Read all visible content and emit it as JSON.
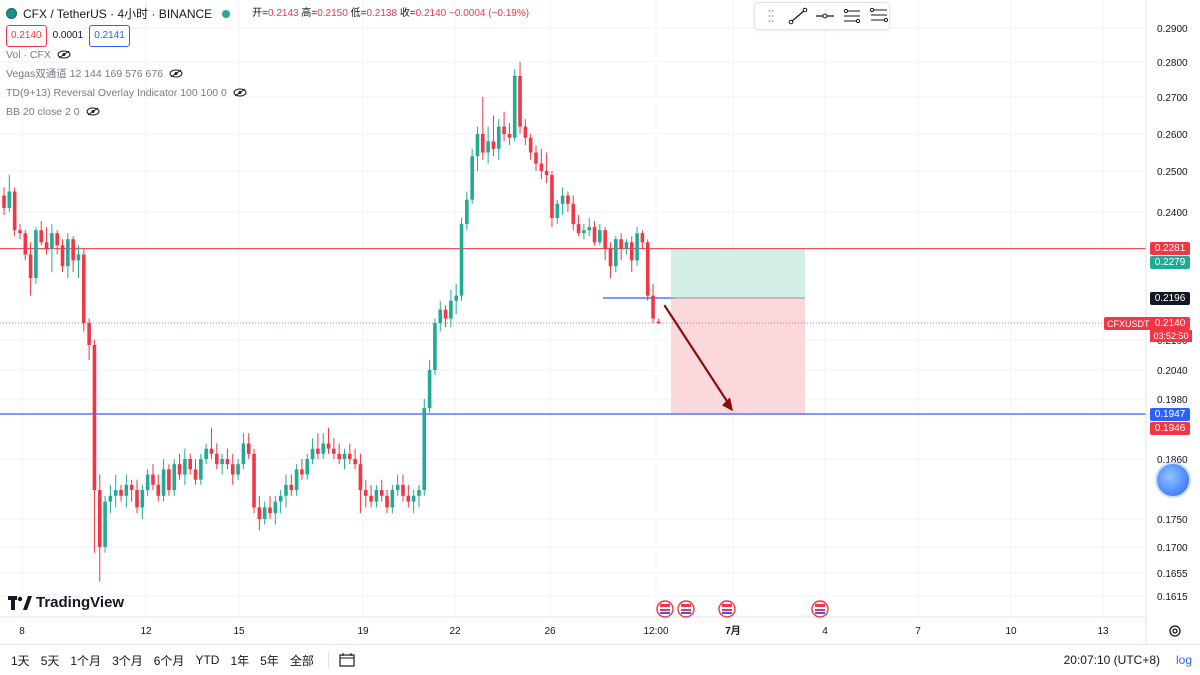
{
  "header": {
    "title": "CFX / TetherUS · 4小时 · BINANCE",
    "ohlc": [
      {
        "label": "开=",
        "value": "0.2143"
      },
      {
        "label": "高=",
        "value": "0.2150"
      },
      {
        "label": "低=",
        "value": "0.2138"
      },
      {
        "label": "收=",
        "value": "0.2140"
      }
    ],
    "change": "−0.0004 (−0.19%)",
    "sell_price": "0.2140",
    "spread": "0.0001",
    "buy_price": "0.2141"
  },
  "indicators": [
    "Vol · CFX",
    "Vegas双通道 12 144 169 576 676",
    "TD(9+13) Reversal Overlay Indicator 100 100 0",
    "BB 20 close 2 0"
  ],
  "logo": "TradingView",
  "bottom": {
    "ranges": [
      "1天",
      "5天",
      "1个月",
      "3个月",
      "6个月",
      "YTD",
      "1年",
      "5年",
      "全部"
    ],
    "clock": "20:07:10 (UTC+8)",
    "log": "log"
  },
  "price_tags": {
    "resistance_top": "0.2281",
    "resistance_bottom": "0.2279",
    "entry": "0.2196",
    "symbol": "CFXUSDT",
    "last": "0.2140",
    "countdown": "03:52:50",
    "support_top": "0.1947",
    "support_bottom": "0.1946"
  },
  "colors": {
    "up": "#22ab94",
    "down": "#f23645",
    "resistance": "#f23645",
    "support": "#2962ff",
    "target_zone": "#cfece6",
    "stop_zone": "#fbd6da",
    "arrow": "#8b0d0d"
  },
  "chart_data": {
    "type": "candlestick",
    "title": "CFX / TetherUS · 4小时 · BINANCE",
    "xlabel": "",
    "ylabel": "",
    "ylim": [
      0.159,
      0.292
    ],
    "y_ticks": [
      "0.2900",
      "0.2800",
      "0.2700",
      "0.2600",
      "0.2500",
      "0.2400",
      "0.2100",
      "0.2040",
      "0.1980",
      "0.1860",
      "0.1750",
      "0.1700",
      "0.1655",
      "0.1615"
    ],
    "x_ticks": [
      "8",
      "12",
      "15",
      "19",
      "22",
      "26",
      "12:00",
      "7月",
      "4",
      "7",
      "10",
      "13"
    ],
    "horizontal_lines": [
      {
        "name": "resistance",
        "value": 0.228
      },
      {
        "name": "support",
        "value": 0.1947
      }
    ],
    "entry_level": 0.2196,
    "position": {
      "direction": "short",
      "entry": 0.2196,
      "stop": 0.228,
      "target": 0.1947
    },
    "candles_ohlc": [
      [
        0.244,
        0.246,
        0.239,
        0.241
      ],
      [
        0.241,
        0.249,
        0.24,
        0.245
      ],
      [
        0.245,
        0.246,
        0.232,
        0.234
      ],
      [
        0.234,
        0.236,
        0.231,
        0.233
      ],
      [
        0.233,
        0.234,
        0.226,
        0.227
      ],
      [
        0.227,
        0.23,
        0.22,
        0.223
      ],
      [
        0.223,
        0.235,
        0.222,
        0.234
      ],
      [
        0.234,
        0.237,
        0.229,
        0.23
      ],
      [
        0.23,
        0.235,
        0.227,
        0.228
      ],
      [
        0.228,
        0.236,
        0.224,
        0.233
      ],
      [
        0.233,
        0.234,
        0.227,
        0.229
      ],
      [
        0.229,
        0.231,
        0.224,
        0.225
      ],
      [
        0.225,
        0.233,
        0.223,
        0.231
      ],
      [
        0.231,
        0.232,
        0.224,
        0.226
      ],
      [
        0.226,
        0.229,
        0.223,
        0.227
      ],
      [
        0.227,
        0.228,
        0.212,
        0.214
      ],
      [
        0.214,
        0.215,
        0.206,
        0.209
      ],
      [
        0.209,
        0.21,
        0.169,
        0.18
      ],
      [
        0.18,
        0.183,
        0.164,
        0.17
      ],
      [
        0.17,
        0.179,
        0.169,
        0.178
      ],
      [
        0.178,
        0.181,
        0.176,
        0.179
      ],
      [
        0.179,
        0.183,
        0.177,
        0.18
      ],
      [
        0.18,
        0.181,
        0.178,
        0.179
      ],
      [
        0.179,
        0.183,
        0.177,
        0.181
      ],
      [
        0.181,
        0.182,
        0.178,
        0.18
      ],
      [
        0.18,
        0.182,
        0.176,
        0.177
      ],
      [
        0.177,
        0.181,
        0.175,
        0.18
      ],
      [
        0.18,
        0.184,
        0.179,
        0.183
      ],
      [
        0.183,
        0.185,
        0.18,
        0.181
      ],
      [
        0.181,
        0.183,
        0.178,
        0.179
      ],
      [
        0.179,
        0.186,
        0.178,
        0.184
      ],
      [
        0.184,
        0.185,
        0.179,
        0.18
      ],
      [
        0.18,
        0.186,
        0.179,
        0.185
      ],
      [
        0.185,
        0.187,
        0.182,
        0.183
      ],
      [
        0.183,
        0.188,
        0.181,
        0.186
      ],
      [
        0.186,
        0.187,
        0.183,
        0.184
      ],
      [
        0.184,
        0.186,
        0.181,
        0.182
      ],
      [
        0.182,
        0.187,
        0.181,
        0.186
      ],
      [
        0.186,
        0.189,
        0.185,
        0.188
      ],
      [
        0.188,
        0.192,
        0.186,
        0.187
      ],
      [
        0.187,
        0.189,
        0.184,
        0.185
      ],
      [
        0.185,
        0.187,
        0.183,
        0.186
      ],
      [
        0.186,
        0.188,
        0.184,
        0.185
      ],
      [
        0.185,
        0.187,
        0.181,
        0.183
      ],
      [
        0.183,
        0.186,
        0.182,
        0.185
      ],
      [
        0.185,
        0.191,
        0.184,
        0.189
      ],
      [
        0.189,
        0.191,
        0.186,
        0.187
      ],
      [
        0.187,
        0.188,
        0.176,
        0.177
      ],
      [
        0.177,
        0.179,
        0.173,
        0.175
      ],
      [
        0.175,
        0.178,
        0.174,
        0.177
      ],
      [
        0.177,
        0.179,
        0.175,
        0.176
      ],
      [
        0.176,
        0.179,
        0.174,
        0.178
      ],
      [
        0.178,
        0.18,
        0.176,
        0.179
      ],
      [
        0.179,
        0.183,
        0.177,
        0.181
      ],
      [
        0.181,
        0.183,
        0.179,
        0.18
      ],
      [
        0.18,
        0.185,
        0.179,
        0.184
      ],
      [
        0.184,
        0.186,
        0.182,
        0.183
      ],
      [
        0.183,
        0.187,
        0.182,
        0.186
      ],
      [
        0.186,
        0.19,
        0.185,
        0.188
      ],
      [
        0.188,
        0.191,
        0.186,
        0.187
      ],
      [
        0.187,
        0.191,
        0.186,
        0.189
      ],
      [
        0.189,
        0.192,
        0.187,
        0.188
      ],
      [
        0.188,
        0.19,
        0.186,
        0.187
      ],
      [
        0.187,
        0.189,
        0.185,
        0.186
      ],
      [
        0.186,
        0.188,
        0.184,
        0.187
      ],
      [
        0.187,
        0.189,
        0.185,
        0.186
      ],
      [
        0.186,
        0.188,
        0.184,
        0.185
      ],
      [
        0.185,
        0.187,
        0.176,
        0.18
      ],
      [
        0.18,
        0.182,
        0.177,
        0.179
      ],
      [
        0.179,
        0.181,
        0.177,
        0.178
      ],
      [
        0.178,
        0.181,
        0.177,
        0.18
      ],
      [
        0.18,
        0.182,
        0.178,
        0.179
      ],
      [
        0.179,
        0.18,
        0.176,
        0.177
      ],
      [
        0.177,
        0.181,
        0.176,
        0.18
      ],
      [
        0.18,
        0.183,
        0.179,
        0.181
      ],
      [
        0.181,
        0.183,
        0.178,
        0.179
      ],
      [
        0.179,
        0.181,
        0.177,
        0.178
      ],
      [
        0.178,
        0.18,
        0.176,
        0.179
      ],
      [
        0.179,
        0.181,
        0.177,
        0.18
      ],
      [
        0.18,
        0.198,
        0.179,
        0.196
      ],
      [
        0.196,
        0.206,
        0.195,
        0.204
      ],
      [
        0.204,
        0.215,
        0.203,
        0.214
      ],
      [
        0.214,
        0.219,
        0.212,
        0.217
      ],
      [
        0.217,
        0.218,
        0.213,
        0.215
      ],
      [
        0.215,
        0.221,
        0.213,
        0.219
      ],
      [
        0.219,
        0.222,
        0.216,
        0.22
      ],
      [
        0.22,
        0.238,
        0.219,
        0.236
      ],
      [
        0.236,
        0.245,
        0.234,
        0.243
      ],
      [
        0.243,
        0.256,
        0.242,
        0.254
      ],
      [
        0.254,
        0.262,
        0.25,
        0.26
      ],
      [
        0.26,
        0.27,
        0.253,
        0.255
      ],
      [
        0.255,
        0.262,
        0.252,
        0.258
      ],
      [
        0.258,
        0.265,
        0.254,
        0.256
      ],
      [
        0.256,
        0.264,
        0.253,
        0.262
      ],
      [
        0.262,
        0.266,
        0.258,
        0.26
      ],
      [
        0.26,
        0.263,
        0.257,
        0.259
      ],
      [
        0.259,
        0.278,
        0.258,
        0.276
      ],
      [
        0.276,
        0.28,
        0.26,
        0.262
      ],
      [
        0.262,
        0.264,
        0.257,
        0.259
      ],
      [
        0.259,
        0.26,
        0.253,
        0.255
      ],
      [
        0.255,
        0.257,
        0.25,
        0.252
      ],
      [
        0.252,
        0.256,
        0.248,
        0.25
      ],
      [
        0.25,
        0.255,
        0.247,
        0.249
      ],
      [
        0.249,
        0.25,
        0.235,
        0.238
      ],
      [
        0.238,
        0.243,
        0.236,
        0.242
      ],
      [
        0.242,
        0.246,
        0.239,
        0.244
      ],
      [
        0.244,
        0.245,
        0.24,
        0.242
      ],
      [
        0.242,
        0.244,
        0.234,
        0.236
      ],
      [
        0.236,
        0.239,
        0.232,
        0.233
      ],
      [
        0.233,
        0.236,
        0.231,
        0.234
      ],
      [
        0.234,
        0.238,
        0.232,
        0.235
      ],
      [
        0.235,
        0.237,
        0.229,
        0.23
      ],
      [
        0.23,
        0.236,
        0.229,
        0.234
      ],
      [
        0.234,
        0.235,
        0.226,
        0.228
      ],
      [
        0.228,
        0.23,
        0.223,
        0.225
      ],
      [
        0.225,
        0.232,
        0.224,
        0.231
      ],
      [
        0.231,
        0.233,
        0.226,
        0.228
      ],
      [
        0.228,
        0.231,
        0.227,
        0.23
      ],
      [
        0.23,
        0.232,
        0.224,
        0.226
      ],
      [
        0.226,
        0.235,
        0.225,
        0.233
      ],
      [
        0.233,
        0.234,
        0.228,
        0.23
      ],
      [
        0.23,
        0.231,
        0.219,
        0.22
      ],
      [
        0.22,
        0.222,
        0.214,
        0.215
      ],
      [
        0.2143,
        0.215,
        0.2138,
        0.214
      ]
    ]
  }
}
